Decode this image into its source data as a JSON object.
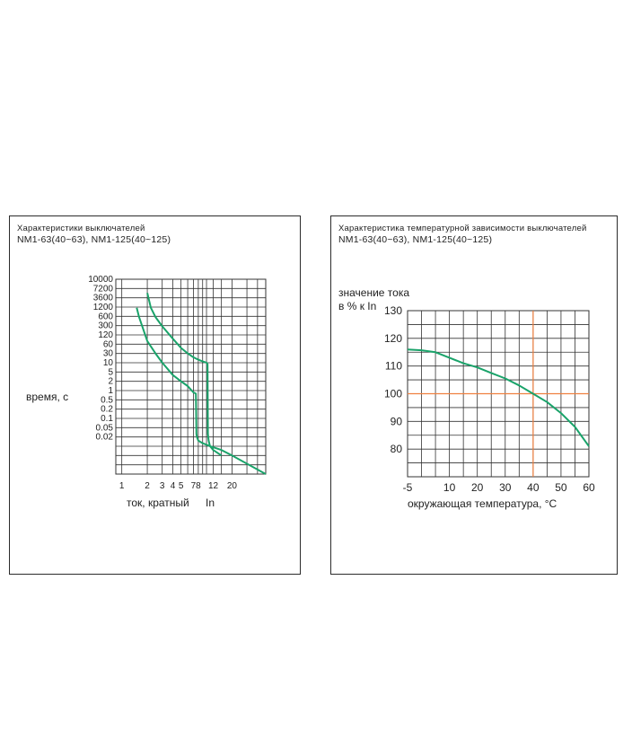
{
  "left_panel": {
    "title_line1": "Характеристики выключателей",
    "title_line2": "NM1-63(40~63), NM1-125(40~125)"
  },
  "right_panel": {
    "title_line1": "Характеристика температурной зависимости выключателей",
    "title_line2": "NM1-63(40~63), NM1-125(40~125)"
  },
  "colors": {
    "curve": "#1aa36a",
    "grid": "#333333",
    "highlight": "#f08040"
  },
  "chart_data": [
    {
      "type": "line",
      "title": "",
      "ylabel": "время, с",
      "xlabel": "ток, кратный",
      "xlabel_unit": "In",
      "y_tick_labels": [
        "10000",
        "7200",
        "3600",
        "1200",
        "600",
        "300",
        "120",
        "60",
        "30",
        "10",
        "5",
        "2",
        "1",
        "0.5",
        "0.2",
        "0.1",
        "0.05",
        "0.02"
      ],
      "x_tick_labels": [
        "1",
        "2",
        "3",
        "4",
        "5",
        "7",
        "8",
        "12",
        "20"
      ],
      "x_tick_values": [
        1,
        2,
        3,
        4,
        5,
        7,
        8,
        12,
        20
      ],
      "grid": true,
      "series": [
        {
          "x": [
            1.5,
            1.6,
            2,
            2.5,
            3,
            4,
            5,
            6,
            7,
            7.5,
            7.6,
            7.7,
            8,
            9,
            11,
            15,
            20,
            50
          ],
          "y": [
            1200,
            600,
            100,
            40,
            20,
            8,
            5,
            3.5,
            2.2,
            2,
            0.1,
            0.08,
            0.06,
            0.05,
            0.04,
            0.03,
            0.02,
            0.005
          ]
        },
        {
          "x": [
            2,
            2.2,
            2.5,
            3,
            4,
            5,
            6,
            7,
            8,
            9,
            10,
            10.3,
            10.4,
            10.6,
            11,
            12,
            15
          ],
          "y": [
            3600,
            1200,
            600,
            300,
            120,
            60,
            40,
            30,
            25,
            22,
            20,
            18,
            0.1,
            0.06,
            0.04,
            0.03,
            0.02
          ]
        }
      ]
    },
    {
      "type": "line",
      "title": "",
      "ylabel_line1": "значение тока",
      "ylabel_line2": "в % к In",
      "xlabel": "окружающая температура, °C",
      "xlim": [
        -5,
        60
      ],
      "ylim": [
        70,
        130
      ],
      "x_ticks": [
        "-5",
        "10",
        "20",
        "30",
        "40",
        "50",
        "60"
      ],
      "x_tick_values": [
        -5,
        10,
        20,
        30,
        40,
        50,
        60
      ],
      "y_ticks": [
        "130",
        "120",
        "110",
        "100",
        "90",
        "80"
      ],
      "y_tick_values": [
        130,
        120,
        110,
        100,
        90,
        80
      ],
      "grid": true,
      "reference_lines": {
        "x": 40,
        "y": 100
      },
      "series": [
        {
          "x": [
            -5,
            0,
            5,
            10,
            15,
            20,
            25,
            30,
            35,
            40,
            45,
            50,
            55,
            60
          ],
          "y": [
            116,
            115.7,
            115,
            113,
            111,
            109.5,
            107.5,
            105.5,
            103,
            100,
            97,
            93,
            88,
            81
          ]
        }
      ]
    }
  ]
}
